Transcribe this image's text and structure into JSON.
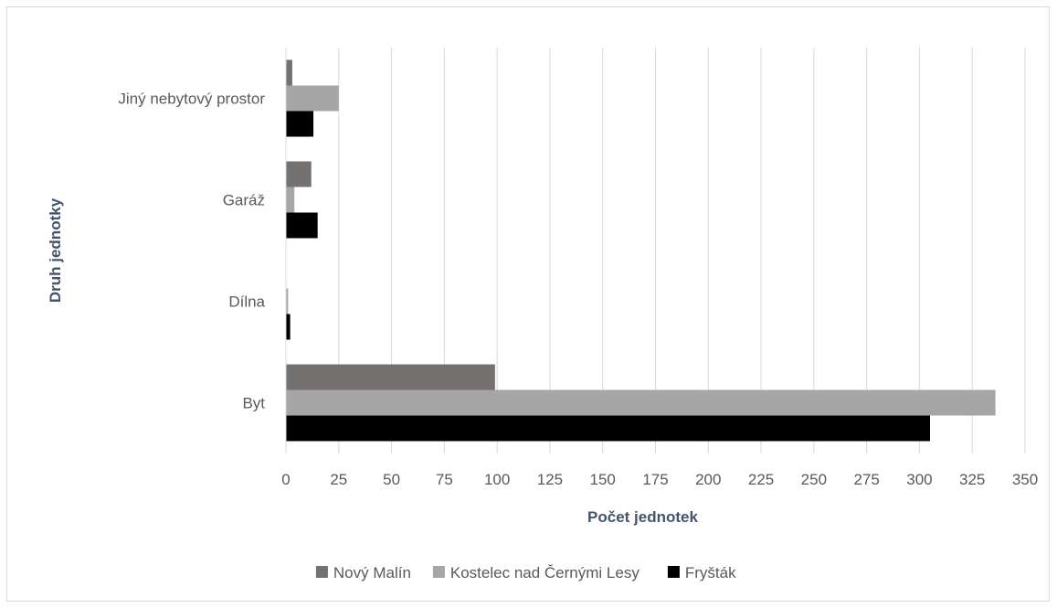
{
  "chart_data": {
    "type": "bar",
    "orientation": "horizontal",
    "categories": [
      "Byt",
      "Dílna",
      "Garáž",
      "Jiný nebytový prostor"
    ],
    "series": [
      {
        "name": "Nový Malín",
        "color": "#767171",
        "values": [
          99,
          0,
          12,
          3
        ]
      },
      {
        "name": "Kostelec nad Černými Lesy",
        "color": "#a6a6a6",
        "values": [
          336,
          1,
          4,
          25
        ]
      },
      {
        "name": "Fryšták",
        "color": "#000000",
        "values": [
          305,
          2,
          15,
          13
        ]
      }
    ],
    "xlabel": "Počet jednotek",
    "ylabel": "Druh jednotky",
    "xlim": [
      0,
      350
    ],
    "xticks": [
      "0",
      "25",
      "50",
      "75",
      "100",
      "125",
      "150",
      "175",
      "200",
      "225",
      "250",
      "275",
      "300",
      "325",
      "350"
    ],
    "grid": "vertical",
    "legend_position": "bottom"
  }
}
